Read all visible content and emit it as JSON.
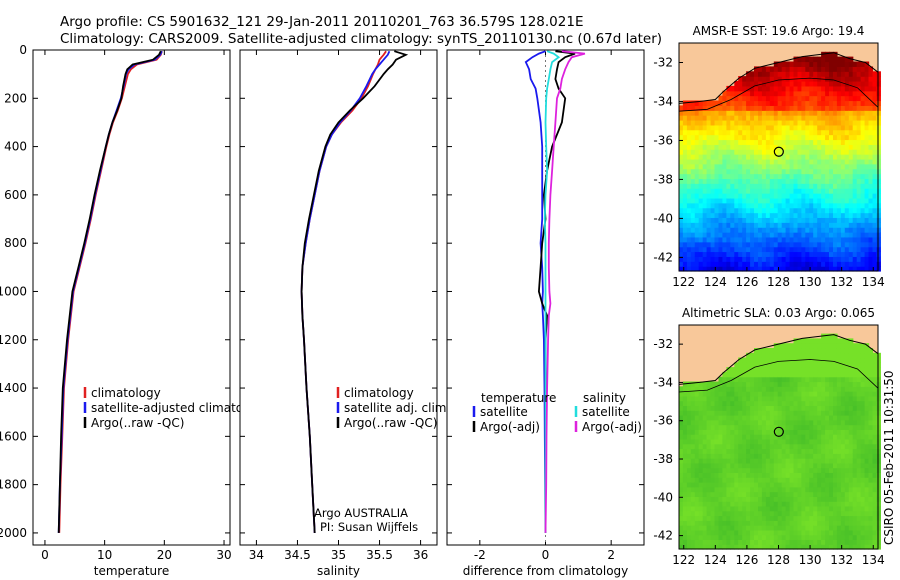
{
  "title_line1": "Argo profile: CS 5901632_121 29-Jan-2011 20110201_763 36.579S 128.021E",
  "title_line2": "Climatology: CARS2009. Satellite-adjusted climatology: synTS_20110130.nc (0.67d later)",
  "side_label": "CSIRO 05-Feb-2011 10:31:50",
  "colors": {
    "climatology": "#e02020",
    "satellite": "#1a1aee",
    "argo": "#000000",
    "sal_satellite": "#22dddd",
    "sal_argo": "#dd22dd",
    "land": "#f8c89a"
  },
  "chart_data": [
    {
      "type": "line",
      "panel": "temperature",
      "xlabel": "temperature",
      "ylabel": "",
      "xlim": [
        -2,
        31
      ],
      "ylim": [
        2050,
        0
      ],
      "xticks": [
        0,
        10,
        20,
        30
      ],
      "xtick_labels": [
        "0",
        "10",
        "20",
        "30"
      ],
      "yticks": [
        0,
        200,
        400,
        600,
        800,
        1000,
        1200,
        1400,
        1600,
        1800,
        2000
      ],
      "ytick_labels": [
        "0",
        "200",
        "400",
        "600",
        "800",
        "1000",
        "1200",
        "1400",
        "1600",
        "1800",
        "2000"
      ],
      "depth": [
        5,
        20,
        40,
        60,
        80,
        100,
        150,
        200,
        250,
        300,
        350,
        400,
        500,
        600,
        700,
        800,
        900,
        1000,
        1200,
        1400,
        1600,
        1800,
        2000
      ],
      "series": [
        {
          "name": "climatology",
          "color_key": "climatology",
          "values": [
            19.6,
            19.4,
            18.7,
            15.4,
            14.4,
            13.9,
            13.4,
            12.9,
            12.2,
            11.4,
            10.8,
            10.3,
            9.4,
            8.5,
            7.7,
            6.8,
            5.8,
            4.8,
            3.9,
            3.2,
            2.9,
            2.6,
            2.4
          ]
        },
        {
          "name": "satellite-adjusted climatology",
          "color_key": "satellite",
          "values": [
            19.6,
            19.3,
            18.4,
            15.0,
            14.0,
            13.6,
            13.2,
            12.7,
            12.0,
            11.3,
            10.7,
            10.2,
            9.3,
            8.4,
            7.6,
            6.7,
            5.7,
            4.7,
            3.8,
            3.1,
            2.8,
            2.5,
            2.3
          ]
        },
        {
          "name": "Argo(..raw -QC)",
          "color_key": "argo",
          "values": [
            19.4,
            19.1,
            18.1,
            14.7,
            13.8,
            13.5,
            13.1,
            12.8,
            12.1,
            11.3,
            10.7,
            10.2,
            9.2,
            8.3,
            7.5,
            6.6,
            5.6,
            4.6,
            3.7,
            3.0,
            2.7,
            2.5,
            2.3
          ]
        }
      ],
      "legend": [
        "climatology",
        "satellite-adjusted climatology",
        "Argo(..raw -QC)"
      ]
    },
    {
      "type": "line",
      "panel": "salinity",
      "xlabel": "salinity",
      "xlim": [
        33.8,
        36.2
      ],
      "ylim": [
        2050,
        0
      ],
      "xticks": [
        34,
        34.5,
        35,
        35.5,
        36
      ],
      "xtick_labels": [
        "34",
        "34.5",
        "35",
        "35.5",
        "36"
      ],
      "depth": [
        5,
        20,
        40,
        60,
        80,
        100,
        150,
        200,
        250,
        300,
        350,
        400,
        500,
        600,
        700,
        800,
        900,
        1000,
        1100,
        1200,
        1400,
        1600,
        1800,
        2000
      ],
      "series": [
        {
          "name": "climatology",
          "color_key": "climatology",
          "values": [
            35.58,
            35.55,
            35.5,
            35.48,
            35.45,
            35.42,
            35.36,
            35.28,
            35.17,
            35.03,
            34.92,
            34.85,
            34.77,
            34.71,
            34.65,
            34.6,
            34.56,
            34.55,
            34.56,
            34.58,
            34.61,
            34.65,
            34.68,
            34.71
          ]
        },
        {
          "name": "satellite adj. clim.",
          "color_key": "satellite",
          "values": [
            35.62,
            35.6,
            35.55,
            35.5,
            35.45,
            35.41,
            35.34,
            35.26,
            35.15,
            35.02,
            34.92,
            34.85,
            34.77,
            34.71,
            34.65,
            34.6,
            34.56,
            34.55,
            34.56,
            34.58,
            34.61,
            34.65,
            34.68,
            34.71
          ]
        },
        {
          "name": "Argo(..raw -QC)",
          "color_key": "argo",
          "values": [
            35.68,
            35.82,
            35.7,
            35.66,
            35.6,
            35.55,
            35.44,
            35.3,
            35.14,
            35.0,
            34.9,
            34.84,
            34.76,
            34.7,
            34.64,
            34.59,
            34.56,
            34.55,
            34.56,
            34.58,
            34.61,
            34.65,
            34.68,
            34.71
          ]
        }
      ],
      "legend": [
        "climatology",
        "satellite adj. clim.",
        "Argo(..raw -QC)"
      ],
      "annotation_line1": "Argo AUSTRALIA",
      "annotation_line2": "PI: Susan Wijffels"
    },
    {
      "type": "line",
      "panel": "difference",
      "xlabel": "difference from climatology",
      "xlim": [
        -3,
        3
      ],
      "ylim": [
        2050,
        0
      ],
      "xticks": [
        -2,
        0,
        2
      ],
      "xtick_labels": [
        "-2",
        "0",
        "2"
      ],
      "depth": [
        5,
        15,
        30,
        50,
        80,
        120,
        160,
        200,
        300,
        400,
        500,
        600,
        700,
        800,
        900,
        1000,
        1050,
        1100,
        1200,
        1400,
        1600,
        1800,
        2000
      ],
      "series": [
        {
          "name": "temperature satellite",
          "color_key": "satellite",
          "values": [
            0.0,
            -0.2,
            -0.4,
            -0.6,
            -0.5,
            -0.45,
            -0.3,
            -0.25,
            -0.15,
            -0.1,
            -0.1,
            -0.1,
            -0.1,
            -0.15,
            -0.1,
            -0.08,
            -0.1,
            -0.08,
            -0.05,
            -0.03,
            -0.02,
            -0.01,
            0.0
          ]
        },
        {
          "name": "temperature Argo(-adj)",
          "color_key": "argo",
          "values": [
            0.3,
            0.9,
            0.6,
            0.4,
            0.35,
            0.3,
            0.4,
            0.6,
            0.5,
            0.2,
            0.05,
            -0.05,
            0.0,
            -0.1,
            -0.15,
            -0.2,
            -0.1,
            0.05,
            0.0,
            0.0,
            0.0,
            0.0,
            0.0
          ]
        },
        {
          "name": "salinity satellite",
          "color_key": "sal_satellite",
          "values": [
            0.05,
            0.25,
            0.4,
            0.2,
            0.15,
            0.1,
            0.05,
            0.02,
            0.0,
            0.02,
            0.05,
            0.0,
            -0.02,
            0.0,
            0.0,
            0.0,
            0.0,
            0.0,
            0.0,
            0.0,
            0.0,
            0.0,
            0.0
          ]
        },
        {
          "name": "salinity Argo(-adj)",
          "color_key": "sal_argo",
          "values": [
            0.5,
            1.2,
            0.8,
            0.7,
            0.6,
            0.5,
            0.45,
            0.35,
            0.3,
            0.25,
            0.2,
            0.15,
            0.12,
            0.1,
            0.1,
            0.12,
            0.15,
            0.1,
            0.08,
            0.05,
            0.03,
            0.02,
            0.0
          ]
        }
      ],
      "legend_temperature_title": "temperature",
      "legend_salinity_title": "salinity",
      "legend_temperature": [
        "satellite",
        "Argo(-adj)"
      ],
      "legend_salinity": [
        "satellite",
        "Argo(-adj)"
      ]
    },
    {
      "type": "heatmap",
      "panel": "map_sst",
      "title": "AMSR-E SST: 19.6 Argo: 19.4",
      "xlim": [
        121.7,
        134.3
      ],
      "ylim": [
        -42.7,
        -31
      ],
      "xticks": [
        122,
        124,
        126,
        128,
        130,
        132,
        134
      ],
      "xtick_labels": [
        "122",
        "124",
        "126",
        "128",
        "130",
        "132",
        "134"
      ],
      "yticks": [
        -32,
        -34,
        -36,
        -38,
        -40,
        -42
      ],
      "ytick_labels": [
        "-32",
        "-34",
        "-36",
        "-38",
        "-40",
        "-42"
      ],
      "argo_position": [
        128.021,
        -36.579
      ],
      "coast_lat": [
        [
          121.7,
          -34.1
        ],
        [
          123.0,
          -34.0
        ],
        [
          124.0,
          -33.9
        ],
        [
          124.5,
          -33.5
        ],
        [
          125.5,
          -32.8
        ],
        [
          126.5,
          -32.3
        ],
        [
          128.0,
          -32.0
        ],
        [
          129.5,
          -31.7
        ],
        [
          131.5,
          -31.5
        ],
        [
          132.5,
          -31.8
        ],
        [
          133.5,
          -32.0
        ],
        [
          134.3,
          -32.5
        ]
      ],
      "shelf_lat": [
        [
          121.7,
          -34.5
        ],
        [
          123.5,
          -34.4
        ],
        [
          125.0,
          -33.9
        ],
        [
          126.5,
          -33.2
        ],
        [
          128.0,
          -32.9
        ],
        [
          130.0,
          -32.8
        ],
        [
          131.5,
          -32.9
        ],
        [
          133.0,
          -33.3
        ],
        [
          134.3,
          -34.3
        ]
      ],
      "value_range": [
        12,
        22
      ],
      "colormap": "jet"
    },
    {
      "type": "heatmap",
      "panel": "map_sla",
      "title": "Altimetric SLA: 0.03 Argo: 0.065",
      "xlim": [
        121.7,
        134.3
      ],
      "ylim": [
        -42.7,
        -31
      ],
      "xticks": [
        122,
        124,
        126,
        128,
        130,
        132,
        134
      ],
      "xtick_labels": [
        "122",
        "124",
        "126",
        "128",
        "130",
        "132",
        "134"
      ],
      "yticks": [
        -32,
        -34,
        -36,
        -38,
        -40,
        -42
      ],
      "ytick_labels": [
        "-32",
        "-34",
        "-36",
        "-38",
        "-40",
        "-42"
      ],
      "argo_position": [
        128.021,
        -36.579
      ],
      "coast_lat": [
        [
          121.7,
          -34.1
        ],
        [
          123.0,
          -34.0
        ],
        [
          124.0,
          -33.9
        ],
        [
          124.5,
          -33.5
        ],
        [
          125.5,
          -32.8
        ],
        [
          126.5,
          -32.3
        ],
        [
          128.0,
          -32.0
        ],
        [
          129.5,
          -31.7
        ],
        [
          131.5,
          -31.5
        ],
        [
          132.5,
          -31.8
        ],
        [
          133.5,
          -32.0
        ],
        [
          134.3,
          -32.5
        ]
      ],
      "shelf_lat": [
        [
          121.7,
          -34.5
        ],
        [
          123.5,
          -34.4
        ],
        [
          125.0,
          -33.9
        ],
        [
          126.5,
          -33.2
        ],
        [
          128.0,
          -32.9
        ],
        [
          130.0,
          -32.8
        ],
        [
          131.5,
          -32.9
        ],
        [
          133.0,
          -33.3
        ],
        [
          134.3,
          -34.3
        ]
      ],
      "value_range": [
        -0.3,
        0.3
      ],
      "colormap": "green"
    }
  ]
}
